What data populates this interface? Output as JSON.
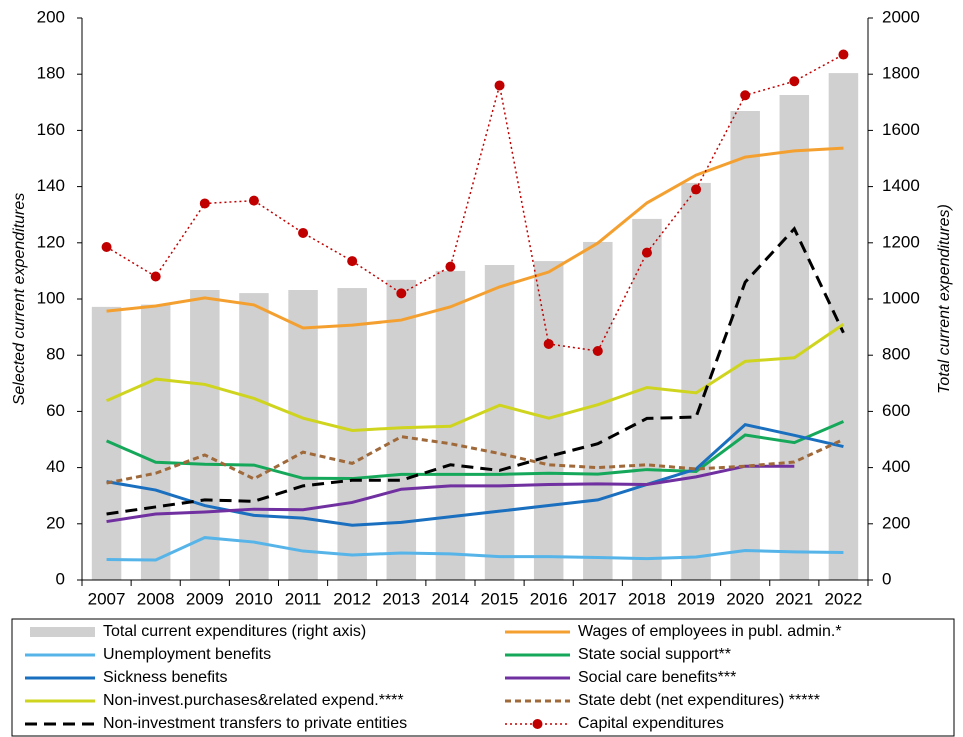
{
  "chart_data": {
    "type": "combo",
    "categories": [
      "2007",
      "2008",
      "2009",
      "2010",
      "2011",
      "2012",
      "2013",
      "2014",
      "2015",
      "2016",
      "2017",
      "2018",
      "2019",
      "2020",
      "2021",
      "2022"
    ],
    "ylabel": "Selected current expenditures",
    "y2label": "Total current expenditures)",
    "ylim": [
      0,
      200
    ],
    "yticks": [
      0,
      20,
      40,
      60,
      80,
      100,
      120,
      140,
      160,
      180,
      200
    ],
    "y2lim": [
      0,
      2000
    ],
    "y2ticks": [
      0,
      200,
      400,
      600,
      800,
      1000,
      1200,
      1400,
      1600,
      1800,
      2000
    ],
    "series": [
      {
        "name": "Total current expenditures (right axis)",
        "type": "bar",
        "axis": "y2",
        "color": "#d0d0d0",
        "values": [
          972,
          980,
          1032,
          1021,
          1032,
          1039,
          1068,
          1100,
          1121,
          1135,
          1203,
          1285,
          1413,
          1669,
          1726,
          1804
        ]
      },
      {
        "name": "Wages of employees in publ. admin.*",
        "type": "line",
        "color": "#f4a030",
        "values": [
          95.7,
          97.5,
          100.4,
          97.9,
          89.7,
          90.7,
          92.5,
          97.2,
          104.3,
          109.6,
          119.9,
          134.2,
          144.1,
          150.5,
          152.7,
          153.7
        ]
      },
      {
        "name": "Unemployment benefits",
        "type": "line",
        "color": "#56b4e9",
        "values": [
          7.3,
          7.1,
          15.1,
          13.5,
          10.3,
          8.9,
          9.6,
          9.3,
          8.3,
          8.3,
          8.0,
          7.6,
          8.2,
          10.5,
          10.0,
          9.8
        ]
      },
      {
        "name": "State social support**",
        "type": "line",
        "color": "#16a85a",
        "values": [
          49.5,
          41.9,
          41.2,
          40.9,
          36.2,
          36.1,
          37.6,
          37.6,
          37.6,
          38.0,
          37.7,
          39.3,
          38.6,
          51.6,
          48.9,
          56.4
        ]
      },
      {
        "name": "Sickness benefits",
        "type": "line",
        "color": "#1a6fbf",
        "values": [
          35,
          32,
          26.5,
          23,
          22,
          19.5,
          20.5,
          22.5,
          24.5,
          26.5,
          28.5,
          34,
          39.5,
          55.3,
          51.5,
          47.5
        ]
      },
      {
        "name": "Social care benefits***",
        "type": "line",
        "color": "#7030a0",
        "values": [
          20.8,
          23.5,
          24.2,
          25.2,
          25,
          27.6,
          32.3,
          33.5,
          33.5,
          34,
          34.2,
          34,
          36.7,
          40.5,
          40.5,
          null
        ]
      },
      {
        "name": "Non-invest.purchases&related expend.****",
        "type": "line",
        "color": "#cfd41e",
        "values": [
          63.8,
          71.5,
          69.6,
          64.6,
          57.6,
          53.2,
          54.2,
          54.7,
          62.2,
          57.6,
          62.4,
          68.5,
          66.6,
          77.8,
          79.1,
          91
        ]
      },
      {
        "name": "State debt (net expenditures) *****",
        "type": "line",
        "color": "#a0693a",
        "dash": "short",
        "values": [
          34.5,
          38,
          44.5,
          36,
          45.5,
          41.5,
          51,
          48.5,
          45,
          41,
          40,
          41,
          39.5,
          40.5,
          42,
          50
        ]
      },
      {
        "name": "Non-investment transfers to private entities",
        "type": "line",
        "color": "#000000",
        "dash": "long",
        "values": [
          23.5,
          26,
          28.5,
          28,
          33.5,
          35.5,
          35.5,
          41,
          39,
          44,
          48.5,
          57.5,
          58,
          106,
          125,
          88
        ]
      },
      {
        "name": "Capital expenditures",
        "type": "line",
        "color": "#c00000",
        "dash": "dot",
        "marker": true,
        "values": [
          118.5,
          108,
          134,
          135,
          123.5,
          113.5,
          102,
          111.5,
          176,
          84,
          81.5,
          116.5,
          139,
          172.5,
          177.5,
          187
        ]
      }
    ]
  }
}
